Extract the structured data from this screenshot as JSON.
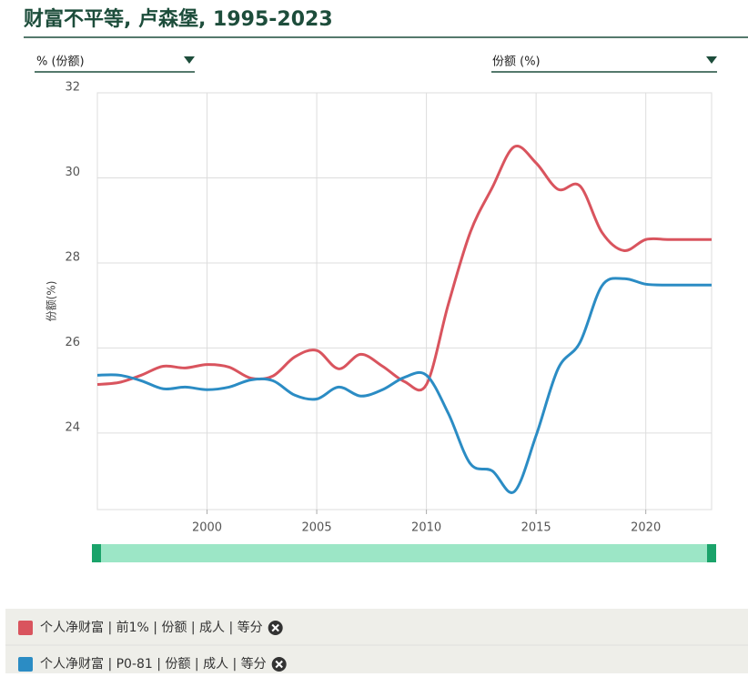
{
  "chart_data": {
    "type": "line",
    "title": "财富不平等, 卢森堡, 1995-2023",
    "controls": {
      "left_select": "% (份额)",
      "right_select": "份额 (%)"
    },
    "y_label": "份额(%)",
    "x": [
      1995,
      1996,
      1997,
      1998,
      1999,
      2000,
      2001,
      2002,
      2003,
      2004,
      2005,
      2006,
      2007,
      2008,
      2009,
      2010,
      2011,
      2012,
      2013,
      2014,
      2015,
      2016,
      2017,
      2018,
      2019,
      2020,
      2021,
      2022,
      2023
    ],
    "series": [
      {
        "name": "个人净财富 | 前1% | 份额 | 成人 | 等分",
        "color": "#d9545e",
        "values": [
          25.14,
          25.19,
          25.36,
          25.57,
          25.53,
          25.61,
          25.55,
          25.29,
          25.34,
          25.79,
          25.94,
          25.51,
          25.85,
          25.57,
          25.21,
          25.14,
          27.03,
          28.72,
          29.77,
          30.73,
          30.35,
          29.73,
          29.81,
          28.72,
          28.29,
          28.55,
          28.55,
          28.55,
          28.55
        ]
      },
      {
        "name": "个人净财富 | P0-81 | 份额 | 成人 | 等分",
        "color": "#2b8cc4",
        "values": [
          25.36,
          25.36,
          25.23,
          25.04,
          25.08,
          25.02,
          25.08,
          25.25,
          25.23,
          24.89,
          24.8,
          25.08,
          24.87,
          25.02,
          25.31,
          25.36,
          24.46,
          23.28,
          23.11,
          22.62,
          23.94,
          25.51,
          26.13,
          27.46,
          27.63,
          27.5,
          27.48,
          27.48,
          27.48
        ]
      }
    ],
    "xlim": [
      1995,
      2023
    ],
    "xticks": [
      2000,
      2005,
      2010,
      2015,
      2020
    ],
    "ylim": [
      22.2,
      32
    ],
    "yticks": [
      24,
      26,
      28,
      30,
      32
    ],
    "grid": true
  }
}
